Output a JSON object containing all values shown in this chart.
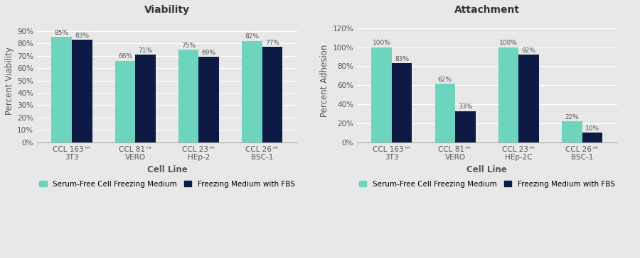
{
  "viability": {
    "title": "Viability",
    "ylabel": "Percent Viability",
    "xlabel": "Cell Line",
    "categories": [
      "CCL 163™ 3T3",
      "CCL 81™ VERO",
      "CCL 23™ HEp-2",
      "CCL 26™ BSC-1"
    ],
    "categories_line1": [
      "CCL 163™",
      "CCL 81™",
      "CCL 23™",
      "CCL 26™"
    ],
    "categories_line2": [
      "3T3",
      "VERO",
      "HEp-2",
      "BSC-1"
    ],
    "serum_free": [
      85,
      66,
      75,
      82
    ],
    "with_fbs": [
      83,
      71,
      69,
      77
    ],
    "ylim": [
      0,
      100
    ],
    "yticks": [
      0,
      10,
      20,
      30,
      40,
      50,
      60,
      70,
      80,
      90
    ],
    "yticklabels": [
      "0%",
      "10%",
      "20%",
      "30%",
      "40%",
      "50%",
      "60%",
      "70%",
      "80%",
      "90%"
    ]
  },
  "attachment": {
    "title": "Attachment",
    "ylabel": "Percent Adhesion",
    "xlabel": "Cell Line",
    "categories": [
      "CCL 163™ 3T3",
      "CCL 81™ VERO",
      "CCL 23™ HEp-2C",
      "CCL 26™ BSC-1"
    ],
    "categories_line1": [
      "CCL 163™",
      "CCL 81™",
      "CCL 23™",
      "CCL 26™"
    ],
    "categories_line2": [
      "3T3",
      "VERO",
      "HEp-2C",
      "BSC-1"
    ],
    "serum_free": [
      100,
      62,
      100,
      22
    ],
    "with_fbs": [
      83,
      33,
      92,
      10
    ],
    "ylim": [
      0,
      130
    ],
    "yticks": [
      0,
      20,
      40,
      60,
      80,
      100,
      120
    ],
    "yticklabels": [
      "0%",
      "20%",
      "40%",
      "60%",
      "80%",
      "100%",
      "120%"
    ]
  },
  "color_serum_free": "#6dd5be",
  "color_fbs": "#0d1a45",
  "bar_width": 0.32,
  "label_serum_free": "Serum-Free Cell Freezing Medium",
  "label_fbs": "Freezing Medium with FBS",
  "bg_color": "#e8e8e8",
  "title_fontsize": 10,
  "axis_label_fontsize": 8.5,
  "tick_fontsize": 7.5,
  "bar_label_fontsize": 6.5,
  "legend_fontsize": 7.5
}
